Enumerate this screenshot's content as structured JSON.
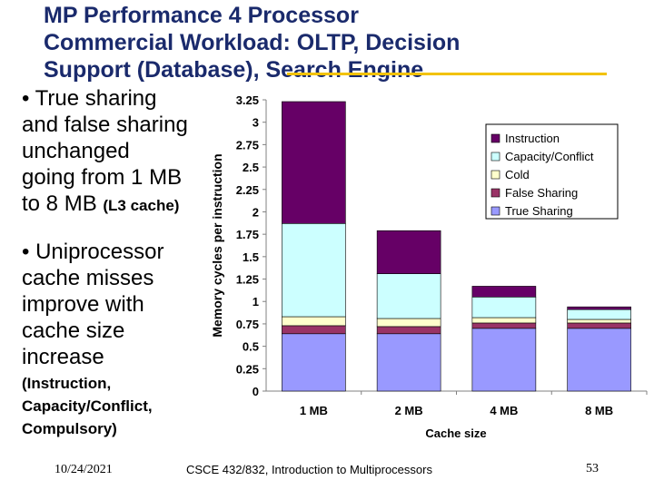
{
  "slide": {
    "title_lines": [
      "MP Performance 4 Processor",
      "Commercial Workload: OLTP, Decision",
      "Support (Database), Search Engine"
    ],
    "accent_color": "#f2c200",
    "title_color": "#1a2a6c",
    "bullet1": {
      "lines": [
        "• True sharing",
        "and false sharing",
        "unchanged",
        "going from 1 MB"
      ],
      "last_line_main": "to 8 MB ",
      "last_line_small": "(L3 cache)"
    },
    "bullet2": {
      "lines": [
        "• Uniprocessor",
        "cache misses",
        "improve with",
        "cache size",
        "increase"
      ],
      "note_lines": [
        "(Instruction,",
        "Capacity/Conflict,",
        "Compulsory)"
      ]
    },
    "footer": {
      "date": "10/24/2021",
      "course": "CSCE 432/832, Introduction to Multiprocessors",
      "page": "53"
    }
  },
  "chart_data": {
    "type": "bar",
    "stacked": true,
    "categories": [
      "1 MB",
      "2 MB",
      "4 MB",
      "8 MB"
    ],
    "series": [
      {
        "name": "True Sharing",
        "color": "#9999ff",
        "values": [
          0.64,
          0.64,
          0.7,
          0.7
        ]
      },
      {
        "name": "False Sharing",
        "color": "#993366",
        "values": [
          0.09,
          0.08,
          0.06,
          0.06
        ]
      },
      {
        "name": "Cold",
        "color": "#ffffcc",
        "values": [
          0.1,
          0.09,
          0.06,
          0.04
        ]
      },
      {
        "name": "Capacity/Conflict",
        "color": "#ccffff",
        "values": [
          1.04,
          0.5,
          0.23,
          0.11
        ]
      },
      {
        "name": "Instruction",
        "color": "#660066",
        "values": [
          1.36,
          0.48,
          0.12,
          0.03
        ]
      }
    ],
    "xlabel": "Cache size",
    "ylabel": "Memory cycles per instruction",
    "ylim": [
      0,
      3.25
    ],
    "yticks": [
      "0",
      "0.25",
      "0.5",
      "0.75",
      "1",
      "1.25",
      "1.5",
      "1.75",
      "2",
      "2.25",
      "2.5",
      "2.75",
      "3",
      "3.25"
    ],
    "legend": {
      "placement": "top-right",
      "order": [
        "Instruction",
        "Capacity/Conflict",
        "Cold",
        "False Sharing",
        "True Sharing"
      ]
    },
    "grid": false
  }
}
